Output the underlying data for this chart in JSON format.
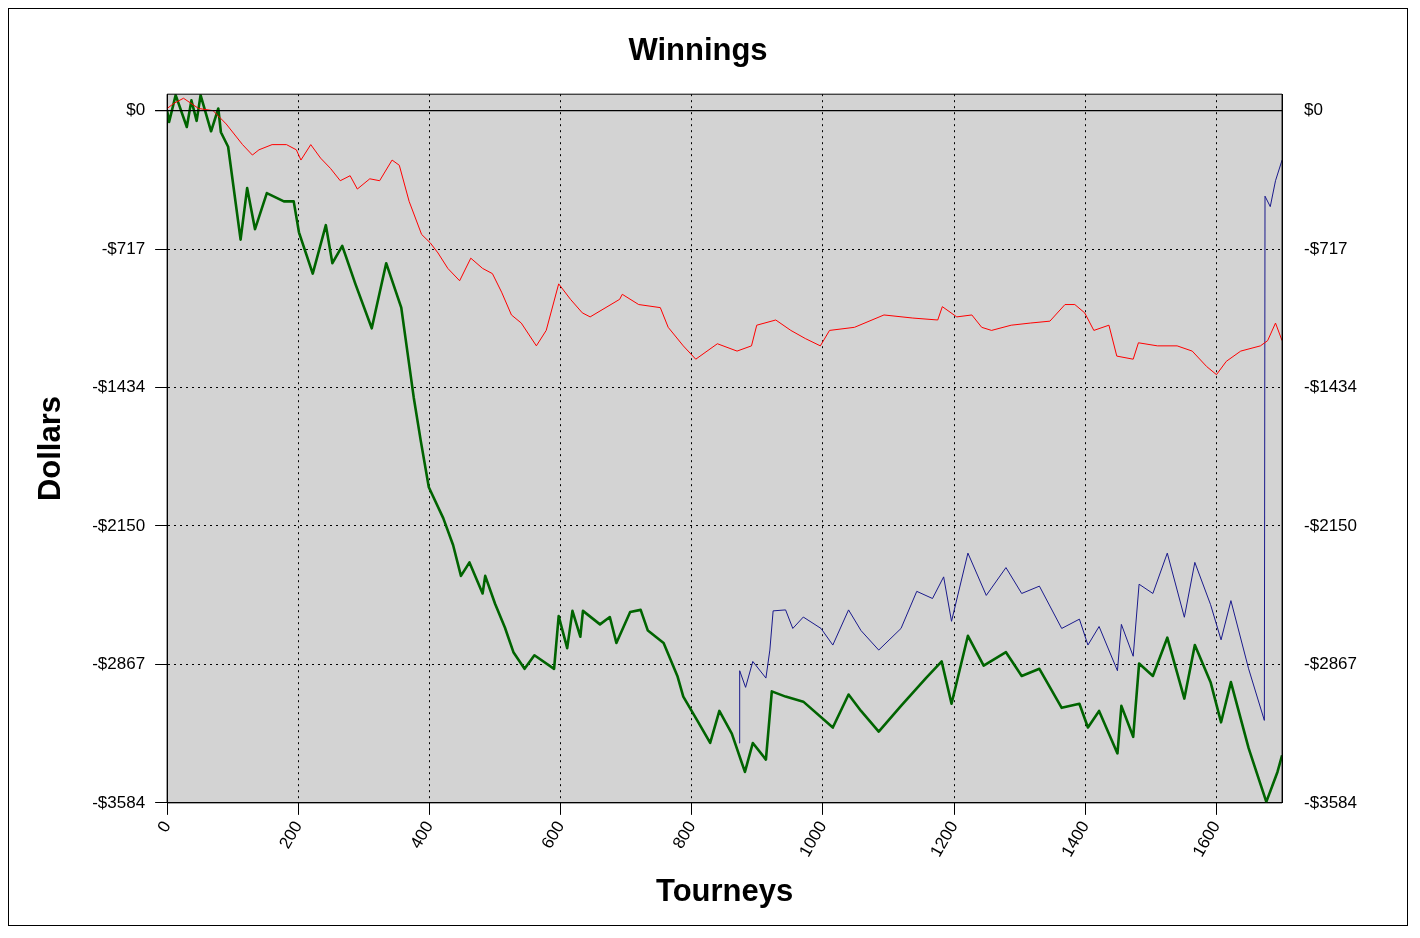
{
  "chart_data": {
    "type": "line",
    "title": "Winnings",
    "xlabel": "Tourneys",
    "ylabel": "Dollars",
    "xlim": [
      0,
      1700
    ],
    "xticks": [
      0,
      200,
      400,
      600,
      800,
      1000,
      1200,
      1400,
      1600
    ],
    "ylim": [
      -3584,
      85
    ],
    "yticks": [
      {
        "value": 0,
        "label": "$0"
      },
      {
        "value": -717,
        "label": "-$717"
      },
      {
        "value": -1434,
        "label": "-$1434"
      },
      {
        "value": -2150,
        "label": "-$2150"
      },
      {
        "value": -2867,
        "label": "-$2867"
      },
      {
        "value": -3584,
        "label": "-$3584"
      }
    ],
    "y2lim": [
      -3584,
      85
    ],
    "y2ticks": [
      {
        "value": 0,
        "label": "$0"
      },
      {
        "value": -717,
        "label": "-$717"
      },
      {
        "value": -1434,
        "label": "-$1434"
      },
      {
        "value": -2150,
        "label": "-$2150"
      },
      {
        "value": -2867,
        "label": "-$2867"
      },
      {
        "value": -3584,
        "label": "-$3584"
      }
    ],
    "grid": true,
    "legend": false,
    "marker": "none",
    "line_style": "solid",
    "ref_lines": [
      {
        "axis": "y",
        "value": 0,
        "color": "#000000",
        "line_style": "solid"
      }
    ],
    "series": [
      {
        "color": "#ff0000",
        "x": [
          0,
          10,
          25,
          48,
          70,
          90,
          115,
          130,
          140,
          160,
          182,
          197,
          204,
          219,
          234,
          249,
          264,
          279,
          290,
          309,
          324,
          343,
          354,
          369,
          388,
          401,
          413,
          428,
          446,
          463,
          481,
          496,
          510,
          525,
          540,
          563,
          578,
          597,
          615,
          633,
          645,
          690,
          694,
          719,
          752,
          764,
          787,
          806,
          839,
          869,
          891,
          899,
          928,
          951,
          973,
          996,
          1010,
          1048,
          1093,
          1137,
          1175,
          1182,
          1204,
          1227,
          1242,
          1257,
          1287,
          1316,
          1346,
          1369,
          1384,
          1399,
          1413,
          1436,
          1448,
          1473,
          1481,
          1510,
          1540,
          1563,
          1585,
          1600,
          1615,
          1637,
          1667,
          1678,
          1690,
          1700
        ],
        "values": [
          11,
          37,
          64,
          11,
          0,
          -69,
          -176,
          -230,
          -203,
          -176,
          -176,
          -203,
          -256,
          -176,
          -246,
          -299,
          -363,
          -337,
          -406,
          -353,
          -363,
          -256,
          -283,
          -470,
          -641,
          -684,
          -737,
          -817,
          -881,
          -764,
          -817,
          -844,
          -940,
          -1058,
          -1100,
          -1218,
          -1138,
          -897,
          -977,
          -1047,
          -1068,
          -977,
          -951,
          -1004,
          -1020,
          -1122,
          -1218,
          -1287,
          -1207,
          -1245,
          -1218,
          -1111,
          -1084,
          -1138,
          -1180,
          -1218,
          -1138,
          -1122,
          -1058,
          -1074,
          -1084,
          -1015,
          -1068,
          -1058,
          -1122,
          -1138,
          -1111,
          -1100,
          -1090,
          -1004,
          -1004,
          -1047,
          -1138,
          -1111,
          -1271,
          -1287,
          -1202,
          -1218,
          -1218,
          -1245,
          -1325,
          -1367,
          -1298,
          -1245,
          -1218,
          -1191,
          -1100,
          -1191
        ]
      },
      {
        "color": "#006400",
        "x": [
          0,
          3,
          13,
          30,
          37,
          45,
          51,
          67,
          78,
          82,
          93,
          112,
          122,
          134,
          152,
          178,
          193,
          201,
          222,
          242,
          252,
          267,
          287,
          312,
          334,
          357,
          376,
          387,
          399,
          421,
          436,
          448,
          461,
          481,
          485,
          500,
          515,
          528,
          545,
          560,
          590,
          597,
          610,
          618,
          630,
          634,
          660,
          675,
          685,
          706,
          722,
          733,
          757,
          778,
          787,
          810,
          828,
          842,
          861,
          881,
          893,
          913,
          922,
          943,
          970,
          1015,
          1039,
          1058,
          1085,
          1119,
          1157,
          1181,
          1196,
          1221,
          1245,
          1279,
          1303,
          1330,
          1364,
          1391,
          1404,
          1421,
          1449,
          1455,
          1473,
          1482,
          1503,
          1525,
          1551,
          1567,
          1591,
          1607,
          1622,
          1649,
          1676,
          1693,
          1700
        ],
        "values": [
          0,
          -59,
          80,
          -85,
          53,
          -53,
          80,
          -107,
          11,
          -112,
          -187,
          -668,
          -401,
          -614,
          -427,
          -470,
          -470,
          -630,
          -844,
          -593,
          -790,
          -700,
          -897,
          -1127,
          -790,
          -1020,
          -1485,
          -1715,
          -1950,
          -2110,
          -2249,
          -2409,
          -2339,
          -2500,
          -2409,
          -2553,
          -2676,
          -2804,
          -2890,
          -2820,
          -2890,
          -2617,
          -2783,
          -2590,
          -2724,
          -2590,
          -2660,
          -2622,
          -2756,
          -2596,
          -2585,
          -2692,
          -2756,
          -2927,
          -3034,
          -3167,
          -3274,
          -3108,
          -3226,
          -3424,
          -3274,
          -3360,
          -3007,
          -3034,
          -3060,
          -3194,
          -3023,
          -3108,
          -3215,
          -3082,
          -2938,
          -2852,
          -3071,
          -2719,
          -2874,
          -2804,
          -2927,
          -2890,
          -3092,
          -3071,
          -3194,
          -3108,
          -3328,
          -3082,
          -3242,
          -2863,
          -2927,
          -2729,
          -3044,
          -2767,
          -2959,
          -3167,
          -2959,
          -3301,
          -3579,
          -3424,
          -3338
        ]
      },
      {
        "color": "#1a1a8c",
        "x": [
          872,
          873,
          882,
          893,
          913,
          919,
          924,
          943,
          954,
          970,
          997,
          1015,
          1039,
          1058,
          1085,
          1119,
          1143,
          1167,
          1184,
          1196,
          1221,
          1249,
          1279,
          1303,
          1330,
          1364,
          1391,
          1404,
          1421,
          1449,
          1455,
          1473,
          1482,
          1503,
          1525,
          1551,
          1567,
          1591,
          1607,
          1622,
          1649,
          1673,
          1674,
          1682,
          1690,
          1700
        ],
        "values": [
          -3274,
          -2900,
          -2986,
          -2852,
          -2938,
          -2793,
          -2590,
          -2585,
          -2681,
          -2622,
          -2681,
          -2767,
          -2585,
          -2692,
          -2793,
          -2681,
          -2489,
          -2526,
          -2414,
          -2644,
          -2291,
          -2510,
          -2366,
          -2500,
          -2462,
          -2681,
          -2633,
          -2767,
          -2671,
          -2900,
          -2660,
          -2825,
          -2452,
          -2500,
          -2291,
          -2623,
          -2339,
          -2558,
          -2740,
          -2537,
          -2890,
          -3157,
          -443,
          -497,
          -363,
          -256
        ]
      }
    ]
  }
}
